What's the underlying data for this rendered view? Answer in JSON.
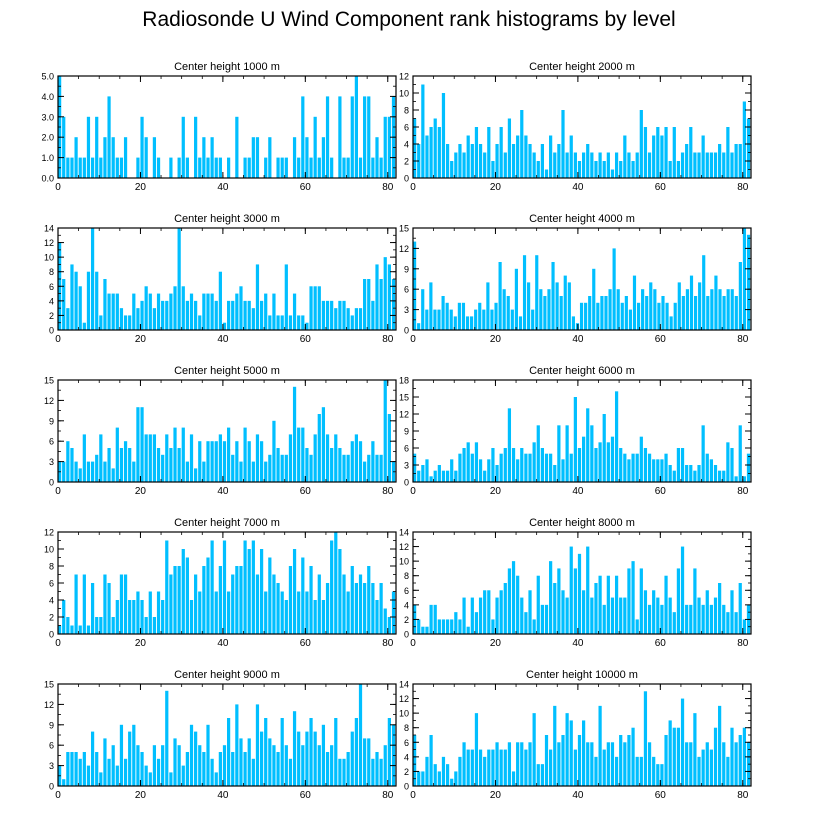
{
  "title": "Radiosonde U Wind Component rank histograms by level",
  "bar_color": "#00BFFF",
  "chart_data": [
    {
      "type": "bar",
      "title": "Center height 1000 m",
      "xlabel": "",
      "ylabel": "",
      "xlim": [
        0,
        82
      ],
      "ylim": [
        0,
        5
      ],
      "xticks": [
        0,
        20,
        40,
        60,
        80
      ],
      "yticks": [
        0,
        1,
        2,
        3,
        4,
        5
      ],
      "ytick_labels": [
        "0.0",
        "1.0",
        "2.0",
        "3.0",
        "4.0",
        "5.0"
      ],
      "values": [
        5,
        3,
        1,
        1,
        2,
        1,
        1,
        3,
        1,
        3,
        1,
        2,
        4,
        2,
        1,
        1,
        2,
        0,
        0,
        1,
        3,
        2,
        0,
        2,
        1,
        0,
        0,
        1,
        0,
        1,
        3,
        1,
        0,
        3,
        1,
        2,
        1,
        2,
        1,
        1,
        0,
        1,
        0,
        3,
        0,
        1,
        1,
        2,
        2,
        0,
        1,
        2,
        0,
        1,
        1,
        1,
        0,
        2,
        1,
        4,
        2,
        1,
        3,
        1,
        2,
        4,
        1,
        0,
        4,
        1,
        1,
        4,
        5,
        1,
        4,
        4,
        1,
        2,
        1,
        3,
        3,
        4
      ]
    },
    {
      "type": "bar",
      "title": "Center height 2000 m",
      "xlabel": "",
      "ylabel": "",
      "xlim": [
        0,
        82
      ],
      "ylim": [
        0,
        12
      ],
      "xticks": [
        0,
        20,
        40,
        60,
        80
      ],
      "yticks": [
        0,
        2,
        4,
        6,
        8,
        10,
        12
      ],
      "values": [
        7,
        4,
        11,
        5,
        6,
        7,
        6,
        10,
        4,
        2,
        3,
        4,
        3,
        5,
        4,
        6,
        4,
        3,
        6,
        2,
        4,
        6,
        3,
        7,
        4,
        5,
        8,
        5,
        4,
        3,
        2,
        4,
        1,
        5,
        3,
        4,
        8,
        3,
        5,
        3,
        2,
        3,
        4,
        3,
        2,
        3,
        2,
        3,
        1,
        3,
        2,
        5,
        3,
        2,
        3,
        8,
        6,
        3,
        5,
        6,
        5,
        6,
        2,
        6,
        2,
        3,
        4,
        6,
        3,
        3,
        5,
        3,
        3,
        3,
        4,
        3,
        6,
        3,
        4,
        4,
        9,
        7
      ]
    },
    {
      "type": "bar",
      "title": "Center height 3000 m",
      "xlabel": "",
      "ylabel": "",
      "xlim": [
        0,
        82
      ],
      "ylim": [
        0,
        14
      ],
      "xticks": [
        0,
        20,
        40,
        60,
        80
      ],
      "yticks": [
        0,
        2,
        4,
        6,
        8,
        10,
        12,
        14
      ],
      "values": [
        12,
        7,
        3,
        9,
        8,
        6,
        1,
        8,
        14,
        8,
        2,
        7,
        5,
        5,
        5,
        3,
        2,
        2,
        5,
        3,
        4,
        6,
        5,
        3,
        5,
        4,
        4,
        5,
        6,
        14,
        6,
        4,
        5,
        4,
        2,
        5,
        5,
        5,
        4,
        8,
        1,
        4,
        4,
        5,
        6,
        4,
        4,
        3,
        9,
        4,
        5,
        2,
        5,
        2,
        2,
        9,
        2,
        5,
        2,
        2,
        1,
        6,
        6,
        6,
        4,
        4,
        4,
        3,
        4,
        4,
        3,
        2,
        3,
        3,
        7,
        7,
        4,
        9,
        7,
        10,
        9,
        7
      ]
    },
    {
      "type": "bar",
      "title": "Center height 4000 m",
      "xlabel": "",
      "ylabel": "",
      "xlim": [
        0,
        82
      ],
      "ylim": [
        0,
        15
      ],
      "xticks": [
        0,
        20,
        40,
        60,
        80
      ],
      "yticks": [
        0,
        3,
        6,
        9,
        12,
        15
      ],
      "values": [
        13,
        1,
        6,
        3,
        7,
        3,
        3,
        5,
        4,
        3,
        2,
        4,
        4,
        2,
        2,
        3,
        4,
        3,
        7,
        3,
        4,
        10,
        6,
        5,
        3,
        9,
        2,
        11,
        7,
        3,
        11,
        6,
        5,
        6,
        10,
        7,
        5,
        8,
        7,
        2,
        1,
        4,
        4,
        5,
        9,
        4,
        5,
        5,
        6,
        12,
        6,
        4,
        5,
        3,
        8,
        4,
        6,
        5,
        7,
        6,
        4,
        5,
        4,
        2,
        4,
        7,
        5,
        6,
        8,
        5,
        7,
        11,
        5,
        6,
        8,
        6,
        5,
        6,
        6,
        5,
        10,
        15,
        14
      ]
    },
    {
      "type": "bar",
      "title": "Center height 5000 m",
      "xlabel": "",
      "ylabel": "",
      "xlim": [
        0,
        82
      ],
      "ylim": [
        0,
        15
      ],
      "xticks": [
        0,
        20,
        40,
        60,
        80
      ],
      "yticks": [
        0,
        3,
        6,
        9,
        12,
        15
      ],
      "values": [
        3,
        3,
        6,
        5,
        3,
        2,
        7,
        3,
        3,
        4,
        7,
        3,
        5,
        2,
        8,
        5,
        6,
        5,
        3,
        11,
        11,
        7,
        7,
        7,
        5,
        4,
        7,
        5,
        8,
        5,
        8,
        3,
        7,
        2,
        6,
        3,
        6,
        6,
        6,
        7,
        6,
        8,
        4,
        6,
        3,
        8,
        6,
        3,
        7,
        6,
        3,
        4,
        9,
        5,
        4,
        4,
        7,
        14,
        8,
        8,
        5,
        4,
        7,
        10,
        11,
        7,
        5,
        7,
        5,
        4,
        4,
        6,
        7,
        6,
        3,
        4,
        6,
        4,
        4,
        15,
        10,
        3
      ]
    },
    {
      "type": "bar",
      "title": "Center height 6000 m",
      "xlabel": "",
      "ylabel": "",
      "xlim": [
        0,
        82
      ],
      "ylim": [
        0,
        18
      ],
      "xticks": [
        0,
        20,
        40,
        60,
        80
      ],
      "yticks": [
        0,
        3,
        6,
        9,
        12,
        15,
        18
      ],
      "values": [
        5,
        2,
        3,
        4,
        1,
        2,
        3,
        2,
        2,
        4,
        2,
        5,
        6,
        7,
        5,
        7,
        4,
        2,
        4,
        6,
        3,
        5,
        6,
        13,
        6,
        4,
        6,
        5,
        5,
        7,
        10,
        6,
        5,
        5,
        3,
        10,
        4,
        10,
        5,
        15,
        6,
        8,
        13,
        10,
        6,
        7,
        12,
        7,
        8,
        16,
        6,
        5,
        4,
        5,
        5,
        8,
        6,
        5,
        4,
        4,
        4,
        5,
        3,
        2,
        6,
        6,
        3,
        3,
        2,
        3,
        10,
        5,
        4,
        3,
        2,
        2,
        7,
        6,
        1,
        10,
        1,
        5
      ]
    },
    {
      "type": "bar",
      "title": "Center height 7000 m",
      "xlabel": "",
      "ylabel": "",
      "xlim": [
        0,
        82
      ],
      "ylim": [
        0,
        12
      ],
      "xticks": [
        0,
        20,
        40,
        60,
        80
      ],
      "yticks": [
        0,
        2,
        4,
        6,
        8,
        10,
        12
      ],
      "values": [
        1,
        4,
        2,
        1,
        7,
        1,
        7,
        1,
        6,
        2,
        2,
        7,
        6,
        2,
        4,
        7,
        7,
        4,
        4,
        5,
        4,
        2,
        5,
        2,
        5,
        4,
        11,
        7,
        8,
        8,
        10,
        9,
        4,
        7,
        5,
        8,
        9,
        11,
        5,
        8,
        11,
        5,
        7,
        8,
        8,
        11,
        10,
        11,
        7,
        10,
        5,
        9,
        7,
        6,
        5,
        4,
        8,
        10,
        5,
        9,
        5,
        8,
        4,
        7,
        4,
        6,
        11,
        12,
        10,
        7,
        5,
        8,
        6,
        7,
        6,
        8,
        6,
        4,
        6,
        3,
        2,
        5
      ]
    },
    {
      "type": "bar",
      "title": "Center height 8000 m",
      "xlabel": "",
      "ylabel": "",
      "xlim": [
        0,
        82
      ],
      "ylim": [
        0,
        14
      ],
      "xticks": [
        0,
        20,
        40,
        60,
        80
      ],
      "yticks": [
        0,
        2,
        4,
        6,
        8,
        10,
        12,
        14
      ],
      "values": [
        4,
        2,
        1,
        1,
        4,
        4,
        2,
        2,
        2,
        2,
        3,
        2,
        5,
        1,
        5,
        3,
        5,
        6,
        6,
        2,
        5,
        6,
        7,
        9,
        10,
        8,
        5,
        3,
        6,
        2,
        8,
        4,
        4,
        10,
        7,
        9,
        6,
        5,
        12,
        9,
        11,
        6,
        12,
        5,
        7,
        8,
        4,
        8,
        5,
        8,
        5,
        5,
        9,
        10,
        2,
        9,
        6,
        4,
        6,
        5,
        4,
        8,
        5,
        3,
        9,
        12,
        4,
        4,
        9,
        5,
        4,
        6,
        4,
        5,
        7,
        4,
        3,
        6,
        3,
        7,
        2,
        4
      ]
    },
    {
      "type": "bar",
      "title": "Center height 9000 m",
      "xlabel": "",
      "ylabel": "",
      "xlim": [
        0,
        82
      ],
      "ylim": [
        0,
        15
      ],
      "xticks": [
        0,
        20,
        40,
        60,
        80
      ],
      "yticks": [
        0,
        3,
        6,
        9,
        12,
        15
      ],
      "values": [
        3,
        1,
        5,
        5,
        5,
        4,
        5,
        3,
        8,
        5,
        2,
        7,
        4,
        6,
        3,
        9,
        4,
        8,
        9,
        6,
        5,
        3,
        2,
        6,
        4,
        6,
        14,
        2,
        7,
        6,
        3,
        5,
        9,
        8,
        6,
        5,
        9,
        4,
        2,
        5,
        6,
        10,
        5,
        12,
        7,
        5,
        7,
        4,
        12,
        8,
        10,
        7,
        6,
        5,
        10,
        6,
        4,
        11,
        8,
        6,
        8,
        10,
        8,
        6,
        9,
        5,
        6,
        10,
        4,
        4,
        5,
        8,
        10,
        15,
        7,
        7,
        4,
        5,
        4,
        6,
        10,
        9
      ]
    },
    {
      "type": "bar",
      "title": "Center height 10000 m",
      "xlabel": "",
      "ylabel": "",
      "xlim": [
        0,
        82
      ],
      "ylim": [
        0,
        14
      ],
      "xticks": [
        0,
        20,
        40,
        60,
        80
      ],
      "yticks": [
        0,
        2,
        4,
        6,
        8,
        10,
        12,
        14
      ],
      "values": [
        7,
        2,
        2,
        4,
        7,
        3,
        2,
        4,
        3,
        1,
        2,
        4,
        6,
        5,
        5,
        10,
        5,
        4,
        5,
        5,
        6,
        5,
        5,
        6,
        2,
        6,
        6,
        5,
        6,
        10,
        3,
        3,
        7,
        5,
        11,
        6,
        7,
        10,
        9,
        5,
        7,
        9,
        6,
        6,
        4,
        11,
        5,
        6,
        6,
        4,
        7,
        6,
        7,
        8,
        4,
        4,
        13,
        6,
        4,
        3,
        3,
        7,
        9,
        8,
        8,
        12,
        6,
        6,
        10,
        4,
        5,
        6,
        5,
        8,
        11,
        6,
        4,
        8,
        6,
        7,
        8,
        6
      ]
    }
  ]
}
